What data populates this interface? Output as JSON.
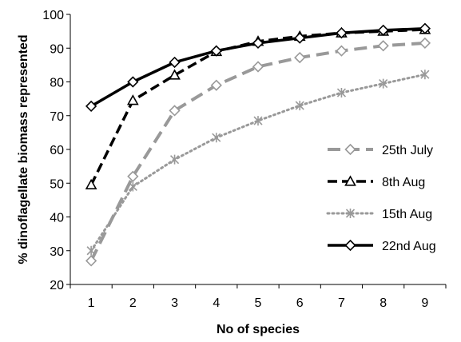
{
  "chart_data": {
    "type": "line",
    "title": "",
    "xlabel": "No of species",
    "ylabel": "% dinoflagellate biomass represented",
    "x": [
      1,
      2,
      3,
      4,
      5,
      6,
      7,
      8,
      9
    ],
    "xticks": [
      "1",
      "2",
      "3",
      "4",
      "5",
      "6",
      "7",
      "8",
      "9"
    ],
    "ylim": [
      20,
      100
    ],
    "yticks": [
      "20",
      "30",
      "40",
      "50",
      "60",
      "70",
      "80",
      "90",
      "100"
    ],
    "grid": false,
    "legend_position": "right",
    "series": [
      {
        "name": "25th July",
        "values": [
          27,
          52,
          71.5,
          79,
          84.5,
          87.2,
          89.2,
          90.7,
          91.5
        ],
        "color": "#999999",
        "line_style": "long-dash",
        "marker": "diamond-open"
      },
      {
        "name": "8th Aug",
        "values": [
          49.5,
          74.5,
          82,
          89,
          92,
          93.5,
          94.5,
          95,
          95.5
        ],
        "color": "#000000",
        "line_style": "dash",
        "marker": "triangle-open"
      },
      {
        "name": "15th Aug",
        "values": [
          30,
          49,
          57,
          63.5,
          68.5,
          73,
          76.8,
          79.5,
          82.2
        ],
        "color": "#999999",
        "line_style": "dotted",
        "marker": "asterisk"
      },
      {
        "name": "22nd Aug",
        "values": [
          72.8,
          80,
          85.8,
          89.2,
          91.5,
          93,
          94.5,
          95.3,
          95.8
        ],
        "color": "#000000",
        "line_style": "solid",
        "marker": "diamond-open"
      }
    ]
  }
}
